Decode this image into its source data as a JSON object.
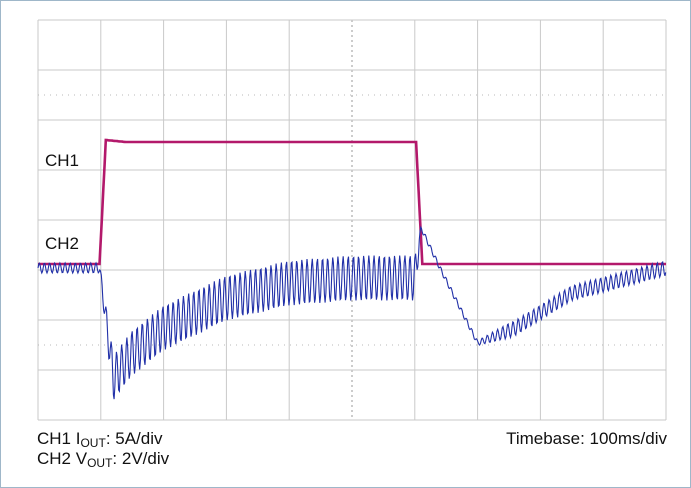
{
  "chart_data": {
    "type": "line",
    "x_unit": "ms",
    "x_range": [
      0,
      1000
    ],
    "grid": true,
    "channels": [
      {
        "label": "CH1",
        "color": "#b3196b",
        "scale": {
          "prefix": "CH1 I",
          "sub": "OUT",
          "suffix": ": 5A/div"
        },
        "y_unit": "A",
        "points": [
          [
            0,
            0
          ],
          [
            98,
            0
          ],
          [
            108,
            12.4
          ],
          [
            140,
            12.2
          ],
          [
            600,
            12.2
          ],
          [
            602,
            12.2
          ],
          [
            612,
            0
          ],
          [
            650,
            0
          ],
          [
            1000,
            0
          ]
        ]
      },
      {
        "label": "CH2",
        "color": "#2130a8",
        "scale": {
          "prefix": "CH2 V",
          "sub": "OUT",
          "suffix": ": 2V/div"
        },
        "y_unit": "V",
        "envelope": [
          [
            0,
            0
          ],
          [
            98,
            0
          ],
          [
            120,
            -4.4
          ],
          [
            150,
            -3.4
          ],
          [
            200,
            -2.4
          ],
          [
            300,
            -1.2
          ],
          [
            400,
            -0.6
          ],
          [
            500,
            -0.4
          ],
          [
            600,
            -0.4
          ],
          [
            610,
            1.6
          ],
          [
            640,
            0
          ],
          [
            700,
            -3.0
          ],
          [
            760,
            -2.4
          ],
          [
            850,
            -1.0
          ],
          [
            1000,
            0
          ]
        ],
        "ripple_amplitude": [
          [
            0,
            0.2
          ],
          [
            98,
            0.2
          ],
          [
            120,
            0.9
          ],
          [
            300,
            0.9
          ],
          [
            600,
            0.9
          ],
          [
            610,
            0.1
          ],
          [
            700,
            0.1
          ],
          [
            750,
            0.3
          ],
          [
            1000,
            0.3
          ]
        ]
      }
    ],
    "timebase": "Timebase: 100ms/div"
  }
}
